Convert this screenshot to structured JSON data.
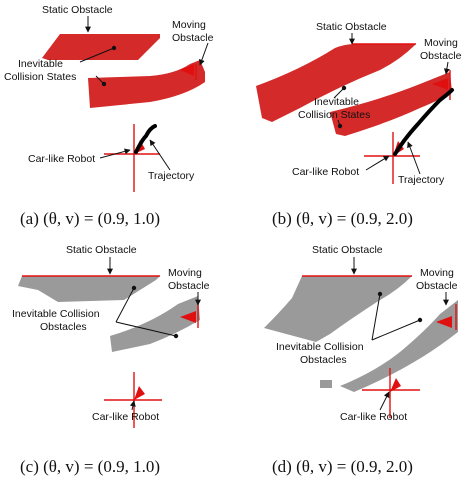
{
  "colors": {
    "ics_fill": "#d42a2a",
    "ico_fill": "#9a9a9a",
    "obstacle_line": "#e01010",
    "trajectory": "#000000",
    "text": "#111111"
  },
  "panels": [
    {
      "id": "a",
      "static_obstacle": "Static Obstacle",
      "moving_obstacle": [
        "Moving",
        "Obstacle"
      ],
      "region": [
        "Inevitable",
        "Collision States"
      ],
      "robot": "Car-like Robot",
      "trajectory": "Trajectory",
      "caption": "(a)  (θ, v) = (0.9, 1.0)"
    },
    {
      "id": "b",
      "static_obstacle": "Static Obstacle",
      "moving_obstacle": [
        "Moving",
        "Obstacle"
      ],
      "region": [
        "Inevitable",
        "Collision States"
      ],
      "robot": "Car-like Robot",
      "trajectory": "Trajectory",
      "caption": "(b)  (θ, v) = (0.9, 2.0)"
    },
    {
      "id": "c",
      "static_obstacle": "Static Obstacle",
      "moving_obstacle": [
        "Moving",
        "Obstacle"
      ],
      "region": [
        "Inevitable Collision",
        "Obstacles"
      ],
      "robot": "Car-like Robot",
      "caption": "(c)  (θ, v) = (0.9, 1.0)"
    },
    {
      "id": "d",
      "static_obstacle": "Static Obstacle",
      "moving_obstacle": [
        "Moving",
        "Obstacle"
      ],
      "region": [
        "Inevitable Collision",
        "Obstacles"
      ],
      "robot": "Car-like Robot",
      "caption": "(d)  (θ, v) = (0.9, 2.0)"
    }
  ]
}
